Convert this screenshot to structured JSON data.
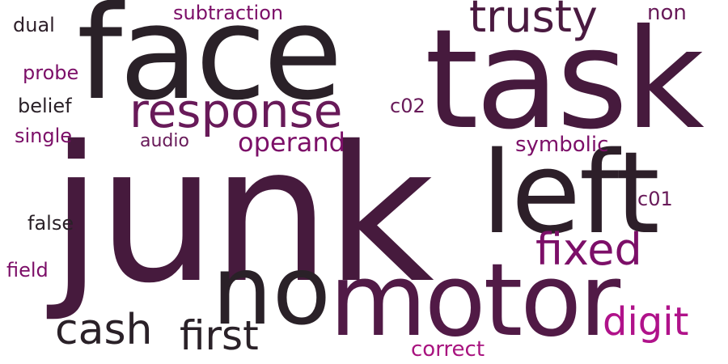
{
  "word_cloud": {
    "words": [
      {
        "text": "junk",
        "color": "#461a3d"
      },
      {
        "text": "face",
        "color": "#2a2128"
      },
      {
        "text": "task",
        "color": "#461a3d"
      },
      {
        "text": "left",
        "color": "#2d1f29"
      },
      {
        "text": "motor",
        "color": "#511a46"
      },
      {
        "text": "no",
        "color": "#2a2128"
      },
      {
        "text": "response",
        "color": "#681a59"
      },
      {
        "text": "trusty",
        "color": "#4a1a40"
      },
      {
        "text": "fixed",
        "color": "#7c0f68"
      },
      {
        "text": "first",
        "color": "#2a2128"
      },
      {
        "text": "cash",
        "color": "#2a2128"
      },
      {
        "text": "digit",
        "color": "#b0128a"
      },
      {
        "text": "operand",
        "color": "#7c0f68"
      },
      {
        "text": "subtraction",
        "color": "#7c0f68"
      },
      {
        "text": "non",
        "color": "#681a59"
      },
      {
        "text": "symbolic",
        "color": "#7c0f68"
      },
      {
        "text": "correct",
        "color": "#a8137f"
      },
      {
        "text": "dual",
        "color": "#2d1f29"
      },
      {
        "text": "probe",
        "color": "#7c0f68"
      },
      {
        "text": "belief",
        "color": "#2a2128"
      },
      {
        "text": "single",
        "color": "#7c0f68"
      },
      {
        "text": "audio",
        "color": "#681a59"
      },
      {
        "text": "c02",
        "color": "#681a59"
      },
      {
        "text": "c01",
        "color": "#681a59"
      },
      {
        "text": "false",
        "color": "#2a2128"
      },
      {
        "text": "field",
        "color": "#7c0f68"
      }
    ]
  }
}
